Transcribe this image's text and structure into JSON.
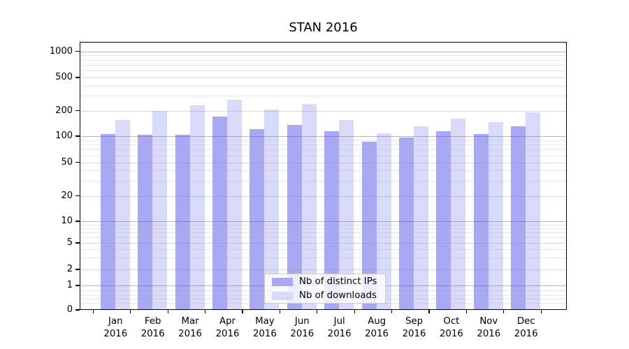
{
  "title": "STAN 2016",
  "chart_data": {
    "type": "bar",
    "title": "STAN 2016",
    "xlabel": "",
    "ylabel": "",
    "categories": [
      "Jan",
      "Feb",
      "Mar",
      "Apr",
      "May",
      "Jun",
      "Jul",
      "Aug",
      "Sep",
      "Oct",
      "Nov",
      "Dec"
    ],
    "year_label": "2016",
    "series": [
      {
        "name": "Nb of distinct IPs",
        "color": "#a8a8f5",
        "values": [
          105,
          103,
          104,
          170,
          120,
          135,
          114,
          87,
          97,
          115,
          106,
          130
        ]
      },
      {
        "name": "Nb of downloads",
        "color": "#d9d9f9",
        "values": [
          155,
          197,
          232,
          270,
          205,
          240,
          155,
          107,
          130,
          160,
          145,
          190
        ]
      }
    ],
    "yscale": "symlog",
    "y_ticks": [
      0,
      1,
      2,
      5,
      10,
      20,
      50,
      100,
      200,
      500,
      1000
    ],
    "ylim": [
      0,
      1300
    ],
    "grid": true,
    "legend_position": "lower center"
  },
  "legend": {
    "items": [
      {
        "label": "Nb of distinct IPs"
      },
      {
        "label": "Nb of downloads"
      }
    ]
  }
}
